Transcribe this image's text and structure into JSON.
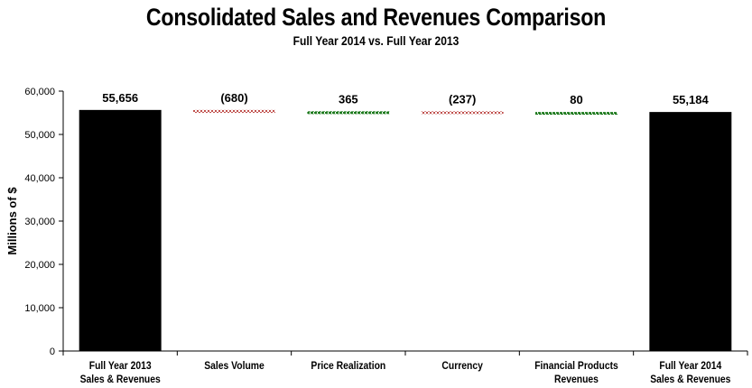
{
  "chart_data": {
    "type": "bar",
    "subtype": "waterfall",
    "title": "Consolidated Sales and Revenues Comparison",
    "subtitle": "Full Year 2014 vs. Full Year 2013",
    "xlabel": "",
    "ylabel": "Millions of $",
    "ylim": [
      0,
      60000
    ],
    "yticks": [
      0,
      10000,
      20000,
      30000,
      40000,
      50000,
      60000
    ],
    "ytick_labels": [
      "0",
      "10,000",
      "20,000",
      "30,000",
      "40,000",
      "50,000",
      "60,000"
    ],
    "grid": false,
    "legend": "none",
    "categories": [
      [
        "Full Year 2013",
        "Sales & Revenues"
      ],
      [
        "Sales Volume"
      ],
      [
        "Price Realization"
      ],
      [
        "Currency"
      ],
      [
        "Financial Products",
        "Revenues"
      ]
    ],
    "categories_last": [
      "Full Year 2014",
      "Sales & Revenues"
    ],
    "bars": [
      {
        "name": "Full Year 2013 Sales & Revenues",
        "kind": "total",
        "start": 0,
        "end": 55656,
        "label": "55,656",
        "color": "#000000"
      },
      {
        "name": "Sales Volume",
        "kind": "decrease",
        "start": 55656,
        "end": 54976,
        "label": "(680)",
        "color": "#c0504d"
      },
      {
        "name": "Price Realization",
        "kind": "increase",
        "start": 54976,
        "end": 55341,
        "label": "365",
        "color": "#1e7a1e"
      },
      {
        "name": "Currency",
        "kind": "decrease",
        "start": 55341,
        "end": 55104,
        "label": "(237)",
        "color": "#c0504d"
      },
      {
        "name": "Financial Products Revenues",
        "kind": "increase",
        "start": 55104,
        "end": 55184,
        "label": "80",
        "color": "#1e7a1e"
      },
      {
        "name": "Full Year 2014 Sales & Revenues",
        "kind": "total",
        "start": 0,
        "end": 55184,
        "label": "55,184",
        "color": "#000000"
      }
    ]
  }
}
